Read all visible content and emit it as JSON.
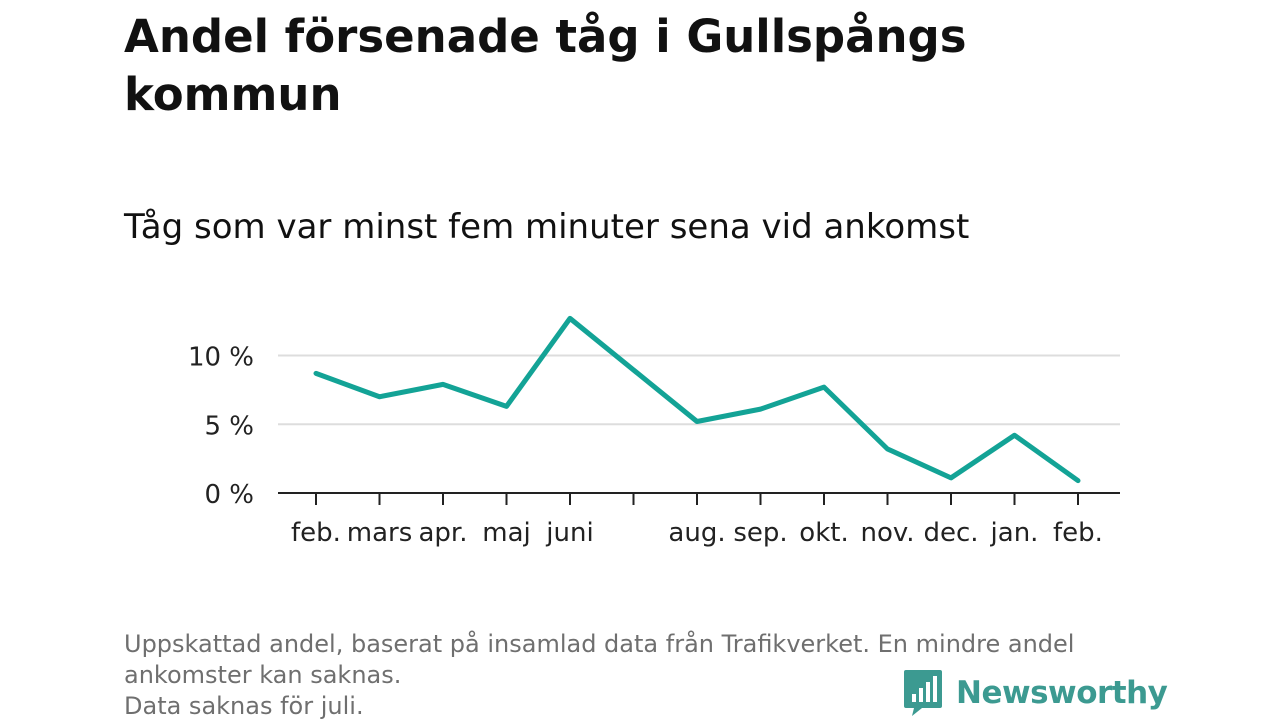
{
  "header": {
    "title": "Andel försenade tåg i Gullspångs kommun",
    "subtitle": "Tåg som var minst fem minuter sena vid ankomst"
  },
  "footer": {
    "note_lines": [
      "Uppskattad andel, baserat på insamlad data från Trafikverket. En mindre andel",
      "ankomster kan saknas.",
      "Data saknas för juli."
    ],
    "brand": "Newsworthy"
  },
  "colors": {
    "line": "#13a396",
    "grid": "#dddddd",
    "axis": "#222222",
    "brand": "#3c9a91",
    "note": "#6f6f6f"
  },
  "chart_data": {
    "type": "line",
    "title": "Andel försenade tåg i Gullspångs kommun",
    "subtitle": "Tåg som var minst fem minuter sena vid ankomst",
    "xlabel": "",
    "ylabel": "",
    "ylim": [
      0,
      13
    ],
    "yticks": [
      0,
      5,
      10
    ],
    "ytick_labels": [
      "0 %",
      "5 %",
      "10 %"
    ],
    "grid": true,
    "categories": [
      "feb.",
      "mars",
      "apr.",
      "maj",
      "juni",
      "",
      "aug.",
      "sep.",
      "okt.",
      "nov.",
      "dec.",
      "jan.",
      "feb."
    ],
    "series": [
      {
        "name": "Andel försenade tåg",
        "values": [
          8.7,
          7.0,
          7.9,
          6.3,
          12.7,
          null,
          5.2,
          6.1,
          7.7,
          3.2,
          1.1,
          4.2,
          0.9
        ]
      }
    ],
    "annotations": [
      "Data saknas för juli."
    ]
  }
}
